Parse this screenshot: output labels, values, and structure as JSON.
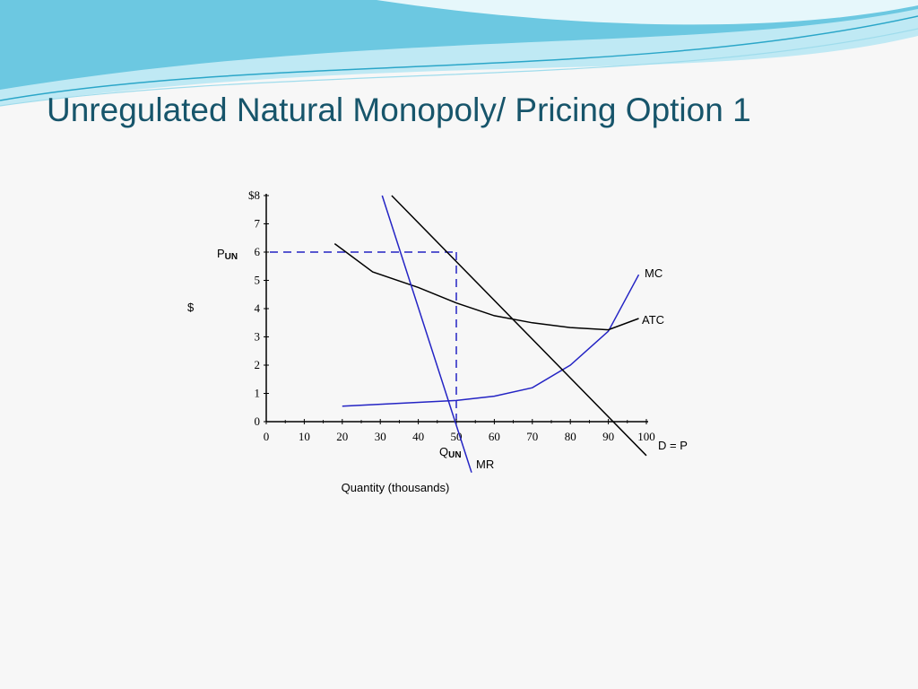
{
  "slide": {
    "title": "Unregulated Natural Monopoly/ Pricing Option 1"
  },
  "colors": {
    "title": "#17556b",
    "wave_dark": "#2aa6c8",
    "wave_light": "#9fdcec",
    "blue_curve": "#2424c4",
    "black_curve": "#000000",
    "guide_dash": "#2424c4"
  },
  "chart_data": {
    "type": "line",
    "title": "",
    "xlabel": "Quantity (thousands)",
    "ylabel": "$",
    "xlim": [
      0,
      100
    ],
    "ylim": [
      0,
      8
    ],
    "x_ticks": [
      0,
      10,
      20,
      30,
      40,
      50,
      60,
      70,
      80,
      90,
      100
    ],
    "y_ticks": [
      0,
      1,
      2,
      3,
      4,
      5,
      6,
      7,
      8
    ],
    "x_tick_labels": [
      "0",
      "10",
      "20",
      "30",
      "40",
      "50",
      "60",
      "70",
      "80",
      "90",
      "100"
    ],
    "y_tick_labels": [
      "0",
      "1",
      "2",
      "3",
      "4",
      "5",
      "6",
      "7",
      "$8"
    ],
    "series": [
      {
        "name": "MC",
        "color": "#2424c4",
        "x": [
          20,
          50,
          60,
          70,
          80,
          90,
          98
        ],
        "y": [
          0.55,
          0.75,
          0.9,
          1.2,
          2.0,
          3.2,
          5.2
        ]
      },
      {
        "name": "ATC",
        "color": "#000000",
        "x": [
          18,
          28,
          40,
          50,
          60,
          70,
          80,
          90,
          98
        ],
        "y": [
          6.3,
          5.3,
          4.75,
          4.2,
          3.75,
          3.5,
          3.33,
          3.25,
          3.65
        ]
      },
      {
        "name": "D = P",
        "color": "#000000",
        "x": [
          33,
          100
        ],
        "y": [
          8,
          -1.2
        ]
      },
      {
        "name": "MR",
        "color": "#2424c4",
        "x": [
          30.5,
          54
        ],
        "y": [
          8,
          -1.8
        ]
      }
    ],
    "annotations": {
      "price_label_main": "P",
      "price_label_sub": "UN",
      "quantity_label_main": "Q",
      "quantity_label_sub": "UN",
      "p_un": 6,
      "q_un": 50
    }
  }
}
